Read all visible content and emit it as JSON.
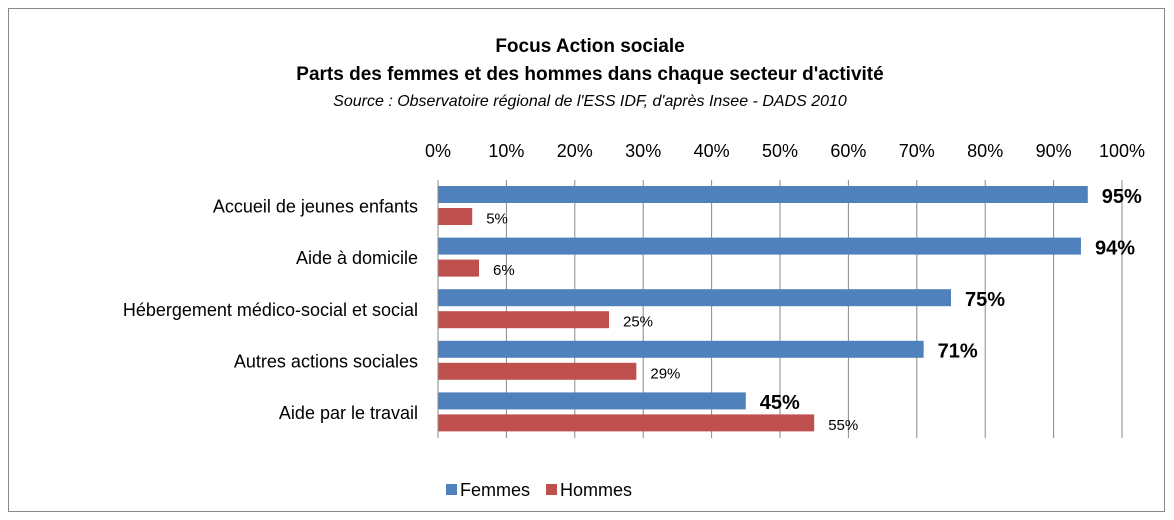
{
  "chart_data": {
    "type": "bar",
    "orientation": "horizontal",
    "title": "Focus Action sociale",
    "subtitle": "Parts des femmes et des hommes dans chaque secteur d'activité",
    "source": "Source : Observatoire régional de l'ESS IDF, d'après Insee - DADS 2010",
    "categories": [
      "Accueil de jeunes enfants",
      "Aide à domicile",
      "Hébergement médico-social et social",
      "Autres actions sociales",
      "Aide par le travail"
    ],
    "series": [
      {
        "name": "Femmes",
        "color": "#4f81bd",
        "values": [
          95,
          94,
          75,
          71,
          45
        ],
        "value_labels": [
          "95%",
          "94%",
          "75%",
          "71%",
          "45%"
        ]
      },
      {
        "name": "Hommes",
        "color": "#c0504d",
        "values": [
          5,
          6,
          25,
          29,
          55
        ],
        "value_labels": [
          "5%",
          "6%",
          "25%",
          "29%",
          "55%"
        ]
      }
    ],
    "xlim": [
      0,
      100
    ],
    "xticks": [
      {
        "value": 0,
        "label": "0%"
      },
      {
        "value": 10,
        "label": "10%"
      },
      {
        "value": 20,
        "label": "20%"
      },
      {
        "value": 30,
        "label": "30%"
      },
      {
        "value": 40,
        "label": "40%"
      },
      {
        "value": 50,
        "label": "50%"
      },
      {
        "value": 60,
        "label": "60%"
      },
      {
        "value": 70,
        "label": "70%"
      },
      {
        "value": 80,
        "label": "80%"
      },
      {
        "value": 90,
        "label": "90%"
      },
      {
        "value": 100,
        "label": "100%"
      }
    ],
    "grid": true,
    "legend": "bottom"
  }
}
